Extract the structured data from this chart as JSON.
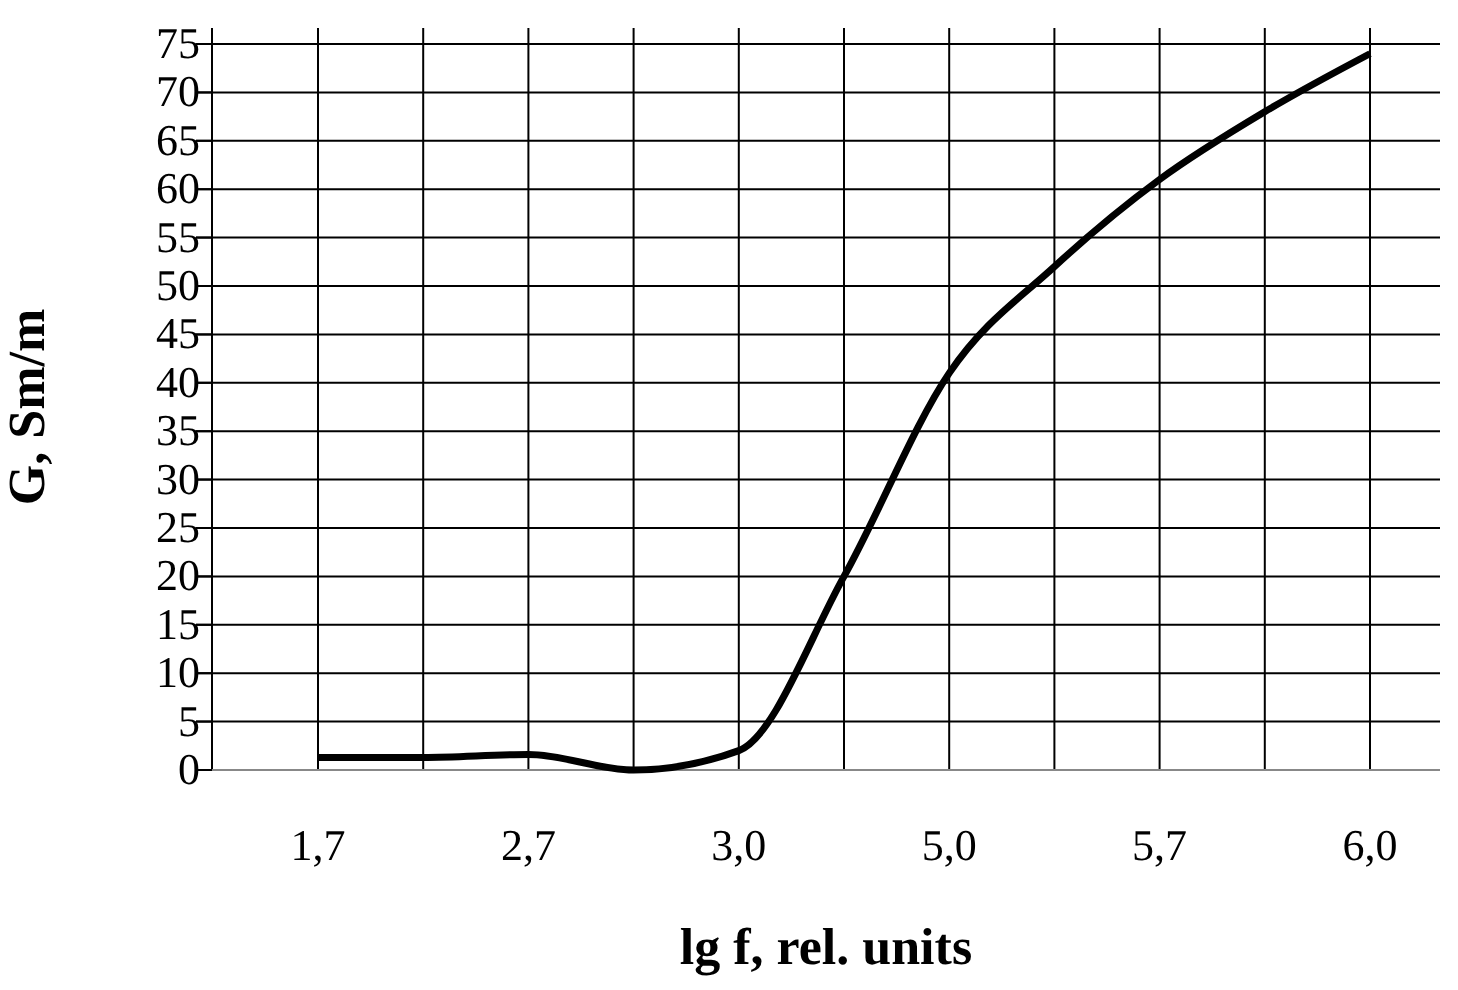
{
  "chart_data": {
    "type": "line",
    "xlabel": "lg f, rel. units",
    "ylabel": "G, Sm/m",
    "categories": [
      "1,7",
      null,
      "2,7",
      null,
      "3,0",
      null,
      "5,0",
      null,
      "5,7",
      null,
      "6,0"
    ],
    "series": [
      {
        "color": "#000000",
        "values": [
          1.3,
          1.3,
          1.6,
          0,
          2,
          20,
          41,
          52,
          61,
          68,
          74
        ]
      }
    ],
    "ylim": [
      0,
      75
    ],
    "yticks": [
      0,
      5,
      10,
      15,
      20,
      25,
      30,
      35,
      40,
      45,
      50,
      55,
      60,
      65,
      70,
      75
    ],
    "grid": true,
    "marker": "none",
    "line_style": "solid"
  }
}
